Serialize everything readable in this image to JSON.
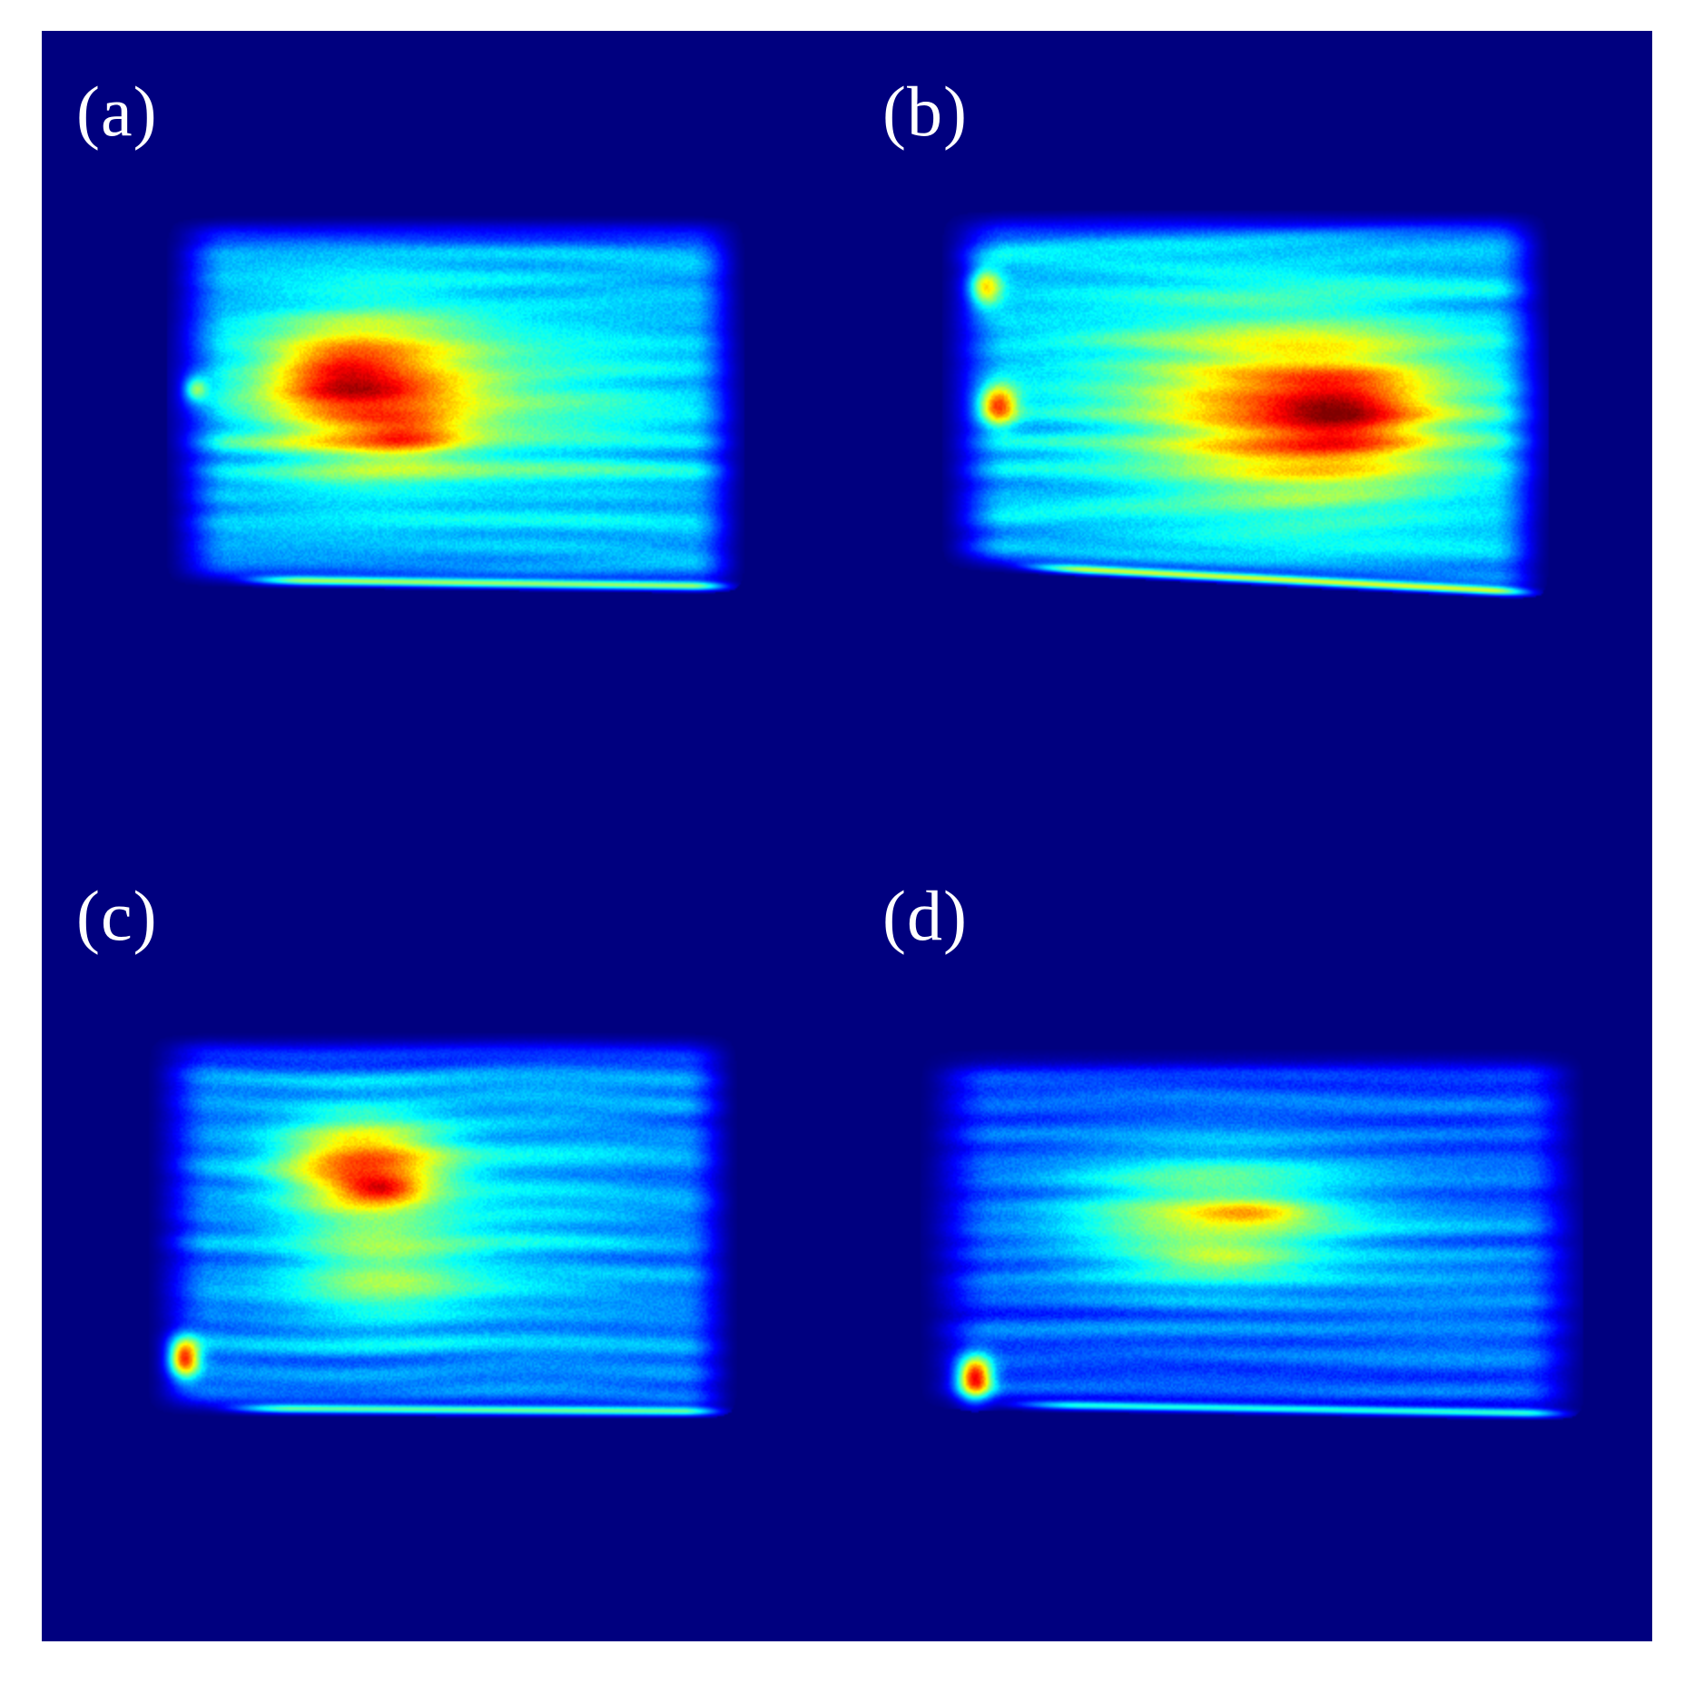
{
  "figure": {
    "background_color": "#00007f",
    "colormap": "jet",
    "panels": [
      {
        "id": "a",
        "label": "(a)"
      },
      {
        "id": "b",
        "label": "(b)"
      },
      {
        "id": "c",
        "label": "(c)"
      },
      {
        "id": "d",
        "label": "(d)"
      }
    ]
  }
}
